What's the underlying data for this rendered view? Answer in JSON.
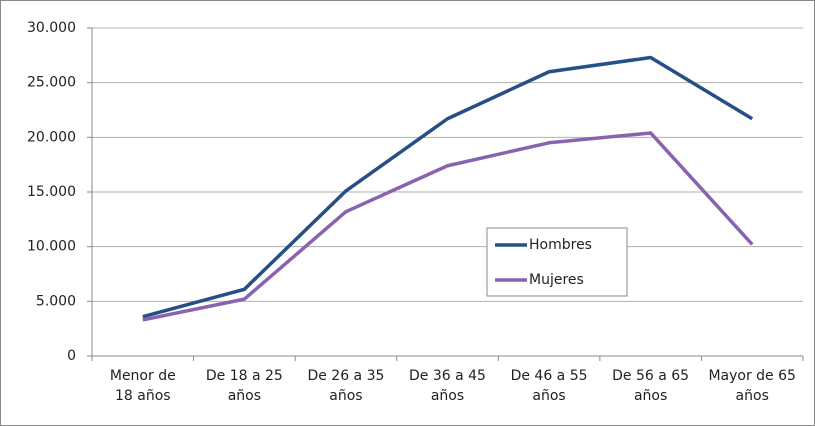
{
  "chart_data": {
    "type": "line",
    "categories": [
      "Menor de\n18 años",
      "De 18 a 25\naños",
      "De 26 a 35\naños",
      "De 36 a 45\naños",
      "De 46 a 55\naños",
      "De 56 a 65\naños",
      "Mayor de 65\naños"
    ],
    "series": [
      {
        "name": "Hombres",
        "color": "#254f85",
        "values": [
          3600,
          6100,
          15100,
          21700,
          26000,
          27300,
          21700
        ]
      },
      {
        "name": "Mujeres",
        "color": "#8a63b0",
        "values": [
          3300,
          5200,
          13200,
          17400,
          19500,
          20400,
          10200
        ]
      }
    ],
    "ylim": [
      0,
      30000
    ],
    "yticks": [
      0,
      {
        "value": 5000,
        "label": "5.000"
      },
      {
        "value": 10000,
        "label": "10.000"
      },
      {
        "value": 15000,
        "label": "15.000"
      },
      {
        "value": 20000,
        "label": "20.000"
      },
      {
        "value": 25000,
        "label": "25.000"
      },
      {
        "value": 30000,
        "label": "30.000"
      }
    ],
    "grid": true
  }
}
